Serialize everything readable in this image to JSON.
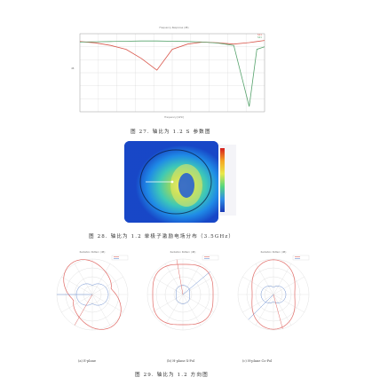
{
  "figure27": {
    "title": "Frequency Response (dB)",
    "caption": "图 27. 轴比为 1.2 S 参数图",
    "colors": {
      "red": "#d9574c",
      "green": "#55a26b",
      "grid": "#d4d4d4",
      "axis": "#999999"
    },
    "chart_data": {
      "type": "line",
      "title": "Frequency Response (dB)",
      "xlabel": "Frequency [GHz]",
      "ylabel": "dB",
      "x": [
        3.0,
        3.1,
        3.2,
        3.3,
        3.4,
        3.5,
        3.6,
        3.7,
        3.8,
        3.9,
        4.0,
        4.1,
        4.15,
        4.2
      ],
      "series": [
        {
          "name": "S11",
          "color": "#d9574c",
          "values": [
            -3.0,
            -3.5,
            -4.5,
            -6.0,
            -9.5,
            -14.0,
            -6.0,
            -4.0,
            -3.2,
            -3.5,
            -4.0,
            -3.4,
            -3.0,
            -2.6
          ]
        },
        {
          "name": "S21",
          "color": "#55a26b",
          "values": [
            -3.2,
            -3.1,
            -3.0,
            -2.9,
            -2.8,
            -2.8,
            -2.9,
            -3.0,
            -3.2,
            -3.6,
            -4.5,
            -28.0,
            -6.0,
            -5.0
          ]
        }
      ],
      "grid": true,
      "legend": "top-right"
    }
  },
  "figure28": {
    "caption": "图 28. 轴比为 1.2 单极子激励电场分布（3.5GHz）",
    "colorbar_labels": [
      "",
      "",
      "",
      "",
      "",
      "",
      "",
      "",
      "",
      "",
      "",
      ""
    ]
  },
  "figure29": {
    "caption": "图 29. 轴比为 1.2 方向图",
    "panels": [
      {
        "title": "Radiation Pattern (dB)",
        "label": "(a) E-plane"
      },
      {
        "title": "Radiation Pattern (dB)",
        "label": "(b) H-plane X-Pol"
      },
      {
        "title": "Radiation Pattern (dB)",
        "label": "(c) H-plane Co-Pol"
      }
    ],
    "colors": {
      "red": "#e06a66",
      "blue": "#6c8fd0",
      "grid": "#cccccc"
    }
  }
}
